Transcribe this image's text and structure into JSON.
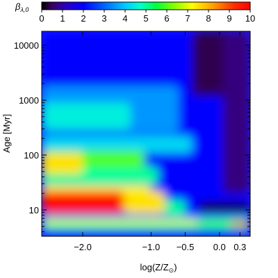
{
  "chart_data": {
    "type": "heatmap",
    "colorbar": {
      "label": "β_λ,0",
      "label_main": "β",
      "label_sub": "λ,0",
      "range": [
        0,
        10
      ],
      "ticks": [
        "0",
        "1",
        "2",
        "3",
        "4",
        "5",
        "6",
        "7",
        "8",
        "9",
        "10"
      ],
      "colormap": "rainbow (black→blue→cyan→green→yellow→orange→red)",
      "placement": "top"
    },
    "x_axis": {
      "label": "log(Z/Z",
      "label_sun": "⊙",
      "label_close": ")",
      "range": [
        -2.6,
        0.45
      ],
      "ticks": [
        {
          "value": -2.0,
          "label": "−2.0"
        },
        {
          "value": -1.0,
          "label": "−1.0"
        },
        {
          "value": -0.5,
          "label": "−0.5"
        },
        {
          "value": 0.0,
          "label": "0.0"
        },
        {
          "value": 0.3,
          "label": "0.3"
        }
      ]
    },
    "y_axis": {
      "label": "Age [Myr]",
      "scale": "log",
      "range": [
        3.3,
        18000
      ],
      "ticks": [
        {
          "value": 10,
          "label": "10"
        },
        {
          "value": 100,
          "label": "100"
        },
        {
          "value": 1000,
          "label": "1000"
        },
        {
          "value": 10000,
          "label": "10000"
        }
      ]
    },
    "grid": false,
    "zones": [
      {
        "x": [
          -2.6,
          0.45
        ],
        "y": [
          3.3,
          18000
        ],
        "value": 2.0
      },
      {
        "x": [
          -0.4,
          0.45
        ],
        "y": [
          1200,
          18000
        ],
        "value": 0.4
      },
      {
        "x": [
          0.05,
          0.45
        ],
        "y": [
          20,
          18000
        ],
        "value": 0.7
      },
      {
        "x": [
          -0.3,
          0.45
        ],
        "y": [
          9,
          14
        ],
        "value": 0.2
      },
      {
        "x": [
          -2.6,
          -0.6
        ],
        "y": [
          250,
          1800
        ],
        "value": 3.5
      },
      {
        "x": [
          -2.6,
          -1.3
        ],
        "y": [
          300,
          900
        ],
        "value": 4.5
      },
      {
        "x": [
          -2.6,
          -0.4
        ],
        "y": [
          110,
          220
        ],
        "value": 4.2
      },
      {
        "x": [
          -2.6,
          -1.1
        ],
        "y": [
          40,
          120
        ],
        "value": 6.0
      },
      {
        "x": [
          -2.6,
          -0.9
        ],
        "y": [
          30,
          60
        ],
        "value": 5.0
      },
      {
        "x": [
          -2.6,
          -2.0
        ],
        "y": [
          45,
          110
        ],
        "value": 7.5
      },
      {
        "x": [
          -2.6,
          -1.0
        ],
        "y": [
          15,
          28
        ],
        "value": 7.2
      },
      {
        "x": [
          -2.6,
          -1.4
        ],
        "y": [
          8.5,
          22
        ],
        "value": 9.8
      },
      {
        "x": [
          -1.4,
          -0.8
        ],
        "y": [
          8.5,
          22
        ],
        "value": 7.5
      },
      {
        "x": [
          -0.8,
          -0.5
        ],
        "y": [
          8,
          15
        ],
        "value": 5.0
      },
      {
        "x": [
          -2.6,
          0.45
        ],
        "y": [
          6.8,
          8.2
        ],
        "value": 3.5
      },
      {
        "x": [
          -2.6,
          -0.3
        ],
        "y": [
          5.4,
          6.8
        ],
        "value": 7.0
      },
      {
        "x": [
          -0.3,
          0.45
        ],
        "y": [
          5.4,
          6.8
        ],
        "value": 6.0
      },
      {
        "x": [
          -2.6,
          0.45
        ],
        "y": [
          4.3,
          5.4
        ],
        "value": 5.0
      },
      {
        "x": [
          -2.6,
          0.45
        ],
        "y": [
          3.3,
          4.3
        ],
        "value": 2.0
      },
      {
        "x": [
          0.15,
          0.45
        ],
        "y": [
          5.0,
          6.0
        ],
        "value": 9.5
      }
    ]
  }
}
